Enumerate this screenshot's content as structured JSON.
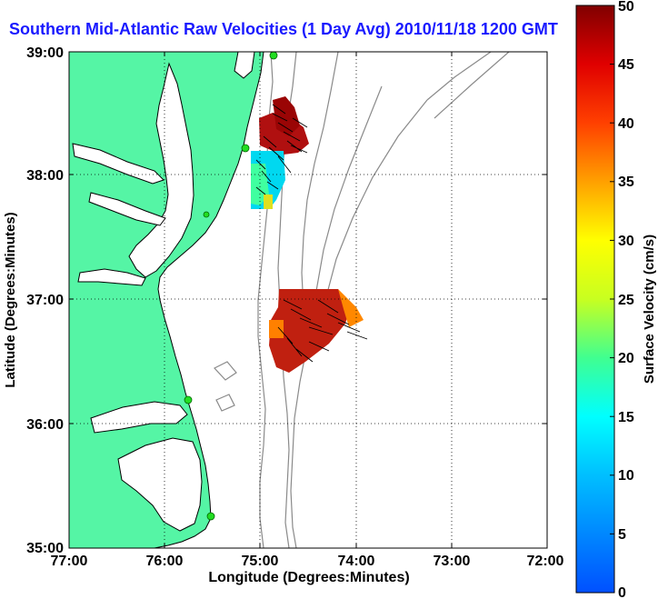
{
  "title": "Southern Mid-Atlantic Raw Velocities (1 Day Avg) 2010/11/18 1200 GMT",
  "x_axis": {
    "label": "Longitude (Degrees:Minutes)",
    "ticks": [
      "77:00",
      "76:00",
      "75:00",
      "74:00",
      "73:00",
      "72:00"
    ]
  },
  "y_axis": {
    "label": "Latitude (Degrees:Minutes)",
    "ticks": [
      "39:00",
      "38:00",
      "37:00",
      "36:00",
      "35:00"
    ]
  },
  "colorbar": {
    "label": "Surface Velocity (cm/s)",
    "ticks": [
      "50",
      "45",
      "40",
      "35",
      "30",
      "25",
      "20",
      "15",
      "10",
      "5",
      "0"
    ],
    "min": 0,
    "max": 50
  },
  "colors": {
    "land": "#55f5a5",
    "coast": "#000000",
    "bathymetry": "#8a8a8a",
    "station": "#22dd22",
    "title": "#1a1aff"
  }
}
